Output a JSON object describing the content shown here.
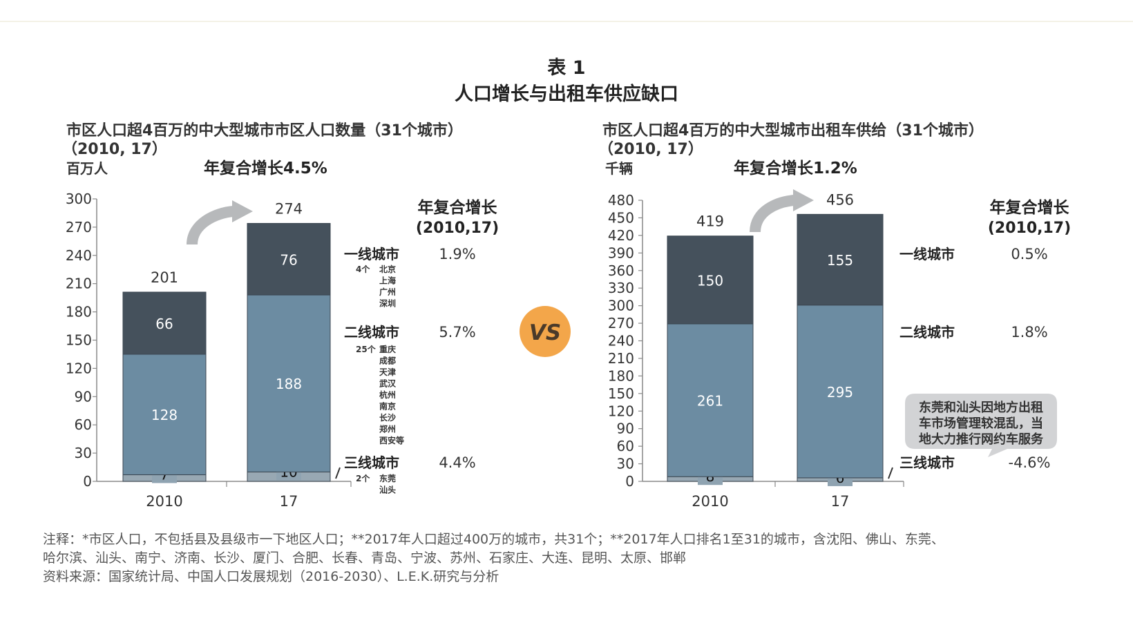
{
  "header": {
    "table_no": "表 1",
    "title": "人口增长与出租车供应缺口"
  },
  "vs_label": "VS",
  "cagr_header": [
    "年复合增长",
    "(2010,17)"
  ],
  "charts": [
    {
      "subtitle_line1": "市区人口超4百万的中大型城市市区人口数量（31个城市）",
      "subtitle_line2": "（2010, 17）",
      "unit": "百万人",
      "growth_label": "年复合增长4.5%"
    },
    {
      "subtitle_line1": "市区人口超4百万的中大型城市出租车供给（31个城市）",
      "subtitle_line2": "（2010, 17）",
      "unit": "千辆",
      "growth_label": "年复合增长1.2%"
    }
  ],
  "left_categories": [
    {
      "name": "一线城市",
      "count": "4个",
      "cities": [
        "北京",
        "上海",
        "广州",
        "深圳"
      ]
    },
    {
      "name": "二线城市",
      "count": "25个",
      "cities": [
        "重庆",
        "成都",
        "天津",
        "武汉",
        "杭州",
        "南京",
        "长沙",
        "郑州",
        "西安等"
      ]
    },
    {
      "name": "三线城市",
      "count": "2个",
      "cities": [
        "东莞",
        "汕头"
      ]
    }
  ],
  "right_callout": [
    "东莞和汕头因地方出租",
    "车市场管理较混乱，当",
    "地大力推行网约车服务"
  ],
  "notes": [
    "注释：*市区人口，不包括县及县级市一下地区人口；**2017年人口超过400万的城市，共31个；**2017年人口排名1至31的城市，含沈阳、佛山、东莞、",
    "哈尔滨、汕头、南宁、济南、长沙、厦门、合肥、长春、青岛、宁波、苏州、石家庄、大连、昆明、太原、邯郸",
    "资料来源：国家统计局、中国人口发展规划（2016-2030）、L.E.K.研究与分析"
  ],
  "colors": {
    "tier1": "#45515c",
    "tier2": "#6c8ca2",
    "tier3": "#98a8b3",
    "vs_circle": "#f3a64a",
    "arrow": "#b7b9bb",
    "callout": "#d2d3d5"
  },
  "chart_data": [
    {
      "type": "bar",
      "stacked": true,
      "categories": [
        "2010",
        "17"
      ],
      "series": [
        {
          "name": "三线城市",
          "values": [
            7,
            10
          ],
          "cagr": "4.4%"
        },
        {
          "name": "二线城市",
          "values": [
            128,
            188
          ],
          "cagr": "5.7%"
        },
        {
          "name": "一线城市",
          "values": [
            66,
            76
          ],
          "cagr": "1.9%"
        }
      ],
      "totals": [
        201,
        274
      ],
      "yticks": [
        0,
        30,
        60,
        90,
        120,
        150,
        180,
        210,
        240,
        270,
        300
      ],
      "ylim": [
        0,
        300
      ],
      "ylabel": "百万人"
    },
    {
      "type": "bar",
      "stacked": true,
      "categories": [
        "2010",
        "17"
      ],
      "series": [
        {
          "name": "三线城市",
          "values": [
            8,
            6
          ],
          "cagr": "-4.6%"
        },
        {
          "name": "二线城市",
          "values": [
            261,
            295
          ],
          "cagr": "1.8%"
        },
        {
          "name": "一线城市",
          "values": [
            150,
            155
          ],
          "cagr": "0.5%"
        }
      ],
      "totals": [
        419,
        456
      ],
      "yticks": [
        0,
        30,
        60,
        90,
        120,
        150,
        180,
        210,
        240,
        270,
        300,
        330,
        360,
        390,
        420,
        450,
        480
      ],
      "ylim": [
        0,
        480
      ],
      "ylabel": "千辆"
    }
  ]
}
